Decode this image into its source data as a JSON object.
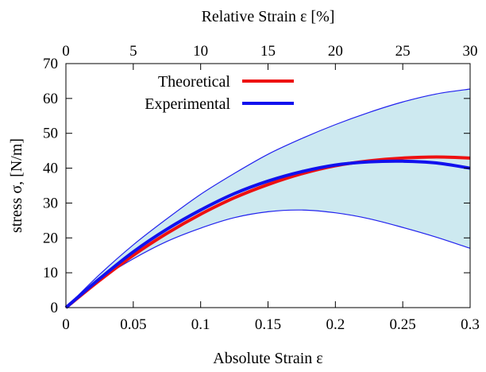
{
  "chart_data": {
    "type": "line",
    "xlabel": "Absolute Strain ε",
    "x2label": "Relative Strain  ε [%]",
    "ylabel": "stress σ,  [N/m]",
    "xlim": [
      0,
      0.3
    ],
    "x2lim": [
      0,
      30
    ],
    "ylim": [
      0,
      70
    ],
    "x_ticks": [
      0,
      0.05,
      0.1,
      0.15,
      0.2,
      0.25,
      0.3
    ],
    "x_tick_labels": [
      "0",
      "0.05",
      "0.1",
      "0.15",
      "0.2",
      "0.25",
      "0.3"
    ],
    "x2_ticks": [
      0,
      5,
      10,
      15,
      20,
      25,
      30
    ],
    "x2_tick_labels": [
      "0",
      "5",
      "10",
      "15",
      "20",
      "25",
      "30"
    ],
    "y_ticks": [
      0,
      10,
      20,
      30,
      40,
      50,
      60,
      70
    ],
    "y_tick_labels": [
      "0",
      "10",
      "20",
      "30",
      "40",
      "50",
      "60",
      "70"
    ],
    "grid": false,
    "legend_position": "top-left",
    "band": {
      "color": "#cde9f0",
      "edge_color": "#2222ee",
      "x": [
        0,
        0.025,
        0.05,
        0.075,
        0.1,
        0.125,
        0.15,
        0.175,
        0.2,
        0.225,
        0.25,
        0.275,
        0.3
      ],
      "upper": [
        0,
        9.5,
        18.0,
        25.5,
        32.5,
        38.5,
        44.0,
        48.5,
        52.5,
        56.0,
        59.0,
        61.3,
        62.7
      ],
      "lower": [
        0,
        8.0,
        14.0,
        19.0,
        22.8,
        25.8,
        27.5,
        28.0,
        27.2,
        25.5,
        23.0,
        20.2,
        17.0
      ]
    },
    "series": [
      {
        "name": "Theoretical",
        "color": "#ee1111",
        "x": [
          0,
          0.025,
          0.05,
          0.075,
          0.1,
          0.125,
          0.15,
          0.175,
          0.2,
          0.225,
          0.25,
          0.275,
          0.3
        ],
        "values": [
          0,
          7.8,
          15.0,
          21.3,
          26.8,
          31.5,
          35.3,
          38.4,
          40.7,
          42.1,
          42.9,
          43.2,
          42.9
        ]
      },
      {
        "name": "Experimental",
        "color": "#1111ee",
        "x": [
          0,
          0.025,
          0.05,
          0.075,
          0.1,
          0.125,
          0.15,
          0.175,
          0.2,
          0.225,
          0.25,
          0.275,
          0.3
        ],
        "values": [
          0,
          8.3,
          16.0,
          22.5,
          28.0,
          32.7,
          36.3,
          39.0,
          40.9,
          41.8,
          42.0,
          41.5,
          40.0
        ]
      }
    ]
  }
}
